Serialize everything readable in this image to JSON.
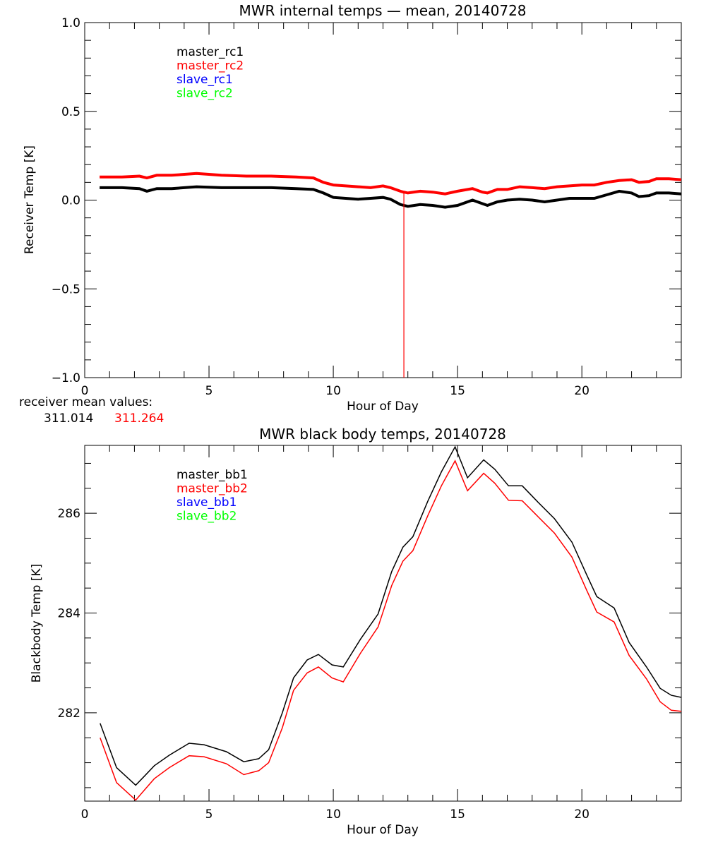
{
  "chart_data": [
    {
      "type": "line",
      "title": "MWR internal temps — mean, 20140728",
      "xlabel": "Hour of Day",
      "ylabel": "Receiver Temp [K]",
      "xlim": [
        0,
        24
      ],
      "ylim": [
        -1.0,
        1.0
      ],
      "xticks": [
        0,
        5,
        10,
        15,
        20
      ],
      "xtick_labels": [
        "0",
        "5",
        "10",
        "15",
        "20"
      ],
      "yticks": [
        -1.0,
        -0.5,
        0.0,
        0.5,
        1.0
      ],
      "ytick_labels": [
        "−1.0",
        "−0.5",
        "0.0",
        "0.5",
        "1.0"
      ],
      "grid": false,
      "legend_placement": "top-left",
      "legend": [
        {
          "name": "master_rc1",
          "color": "#000000"
        },
        {
          "name": "master_rc2",
          "color": "#ff0000"
        },
        {
          "name": "slave_rc1",
          "color": "#0000ff"
        },
        {
          "name": "slave_rc2",
          "color": "#00ff00"
        }
      ],
      "series": [
        {
          "name": "master_rc1",
          "color": "#000000",
          "x": [
            0.6,
            1.5,
            2.2,
            2.5,
            2.9,
            3.5,
            4.5,
            5.5,
            6.5,
            7.5,
            8.5,
            9.2,
            9.6,
            10.0,
            10.5,
            11.0,
            11.5,
            12.0,
            12.3,
            12.7,
            13.0,
            13.5,
            14.0,
            14.5,
            15.0,
            15.6,
            16.0,
            16.2,
            16.6,
            17.0,
            17.5,
            18.0,
            18.5,
            19.0,
            19.5,
            20.0,
            20.5,
            21.0,
            21.5,
            22.0,
            22.3,
            22.7,
            23.0,
            23.5,
            24.0
          ],
          "y": [
            0.07,
            0.07,
            0.065,
            0.05,
            0.065,
            0.065,
            0.075,
            0.07,
            0.07,
            0.07,
            0.065,
            0.06,
            0.04,
            0.015,
            0.01,
            0.005,
            0.01,
            0.015,
            0.005,
            -0.025,
            -0.035,
            -0.025,
            -0.03,
            -0.04,
            -0.03,
            0.0,
            -0.02,
            -0.03,
            -0.01,
            0.0,
            0.005,
            0.0,
            -0.01,
            0.0,
            0.01,
            0.01,
            0.01,
            0.03,
            0.05,
            0.04,
            0.02,
            0.025,
            0.04,
            0.04,
            0.035
          ]
        },
        {
          "name": "master_rc2",
          "color": "#ff0000",
          "x": [
            0.6,
            1.5,
            2.2,
            2.5,
            2.9,
            3.5,
            4.5,
            5.5,
            6.5,
            7.5,
            8.5,
            9.2,
            9.6,
            10.0,
            10.5,
            11.0,
            11.5,
            12.0,
            12.3,
            12.7,
            12.83,
            12.84,
            12.85,
            13.0,
            13.5,
            14.0,
            14.5,
            15.0,
            15.6,
            16.0,
            16.2,
            16.6,
            17.0,
            17.5,
            18.0,
            18.5,
            19.0,
            19.5,
            20.0,
            20.5,
            21.0,
            21.5,
            22.0,
            22.3,
            22.7,
            23.0,
            23.5,
            24.0
          ],
          "y": [
            0.13,
            0.13,
            0.135,
            0.125,
            0.14,
            0.14,
            0.15,
            0.14,
            0.135,
            0.135,
            0.13,
            0.125,
            0.1,
            0.085,
            0.08,
            0.075,
            0.07,
            0.08,
            0.07,
            0.05,
            0.045,
            -1.05,
            0.045,
            0.04,
            0.05,
            0.045,
            0.035,
            0.05,
            0.065,
            0.045,
            0.04,
            0.06,
            0.06,
            0.075,
            0.07,
            0.065,
            0.075,
            0.08,
            0.085,
            0.085,
            0.1,
            0.11,
            0.115,
            0.1,
            0.105,
            0.12,
            0.12,
            0.115
          ]
        }
      ]
    },
    {
      "type": "line",
      "title": "MWR black body temps, 20140728",
      "xlabel": "Hour of Day",
      "ylabel": "Blackbody Temp [K]",
      "xlim": [
        0,
        24
      ],
      "ylim": [
        280.23,
        287.36
      ],
      "xticks": [
        0,
        5,
        10,
        15,
        20
      ],
      "xtick_labels": [
        "0",
        "5",
        "10",
        "15",
        "20"
      ],
      "yticks": [
        282,
        284,
        286
      ],
      "ytick_labels": [
        "282",
        "284",
        "286"
      ],
      "grid": false,
      "legend_placement": "top-left",
      "legend": [
        {
          "name": "master_bb1",
          "color": "#000000"
        },
        {
          "name": "master_bb2",
          "color": "#ff0000"
        },
        {
          "name": "slave_bb1",
          "color": "#0000ff"
        },
        {
          "name": "slave_bb2",
          "color": "#00ff00"
        }
      ],
      "series": [
        {
          "name": "master_bb1",
          "color": "#000000",
          "x": [
            0.62,
            1.28,
            2.05,
            2.4,
            2.8,
            3.4,
            4.2,
            4.8,
            5.7,
            6.4,
            7.0,
            7.4,
            7.95,
            8.4,
            8.95,
            9.4,
            9.95,
            10.4,
            11.1,
            11.8,
            12.35,
            12.8,
            13.2,
            13.8,
            14.35,
            14.9,
            15.4,
            16.05,
            16.5,
            17.05,
            17.6,
            18.2,
            18.9,
            19.6,
            20.2,
            20.6,
            21.3,
            21.9,
            22.6,
            23.15,
            23.6,
            24.0
          ],
          "y": [
            281.79,
            280.9,
            280.55,
            280.73,
            280.94,
            281.15,
            281.39,
            281.36,
            281.22,
            281.02,
            281.08,
            281.26,
            282.0,
            282.7,
            283.06,
            283.17,
            282.96,
            282.92,
            283.48,
            283.98,
            284.83,
            285.32,
            285.53,
            286.24,
            286.83,
            287.33,
            286.71,
            287.07,
            286.88,
            286.55,
            286.55,
            286.24,
            285.89,
            285.42,
            284.76,
            284.33,
            284.1,
            283.41,
            282.92,
            282.49,
            282.35,
            282.31
          ]
        },
        {
          "name": "master_bb2",
          "color": "#ff0000",
          "x": [
            0.62,
            1.28,
            2.05,
            2.4,
            2.8,
            3.4,
            4.2,
            4.8,
            5.7,
            6.4,
            7.0,
            7.4,
            7.95,
            8.4,
            8.95,
            9.4,
            9.95,
            10.4,
            11.1,
            11.8,
            12.35,
            12.8,
            13.2,
            13.8,
            14.35,
            14.9,
            15.4,
            16.05,
            16.5,
            17.05,
            17.6,
            18.2,
            18.9,
            19.6,
            20.2,
            20.6,
            21.3,
            21.9,
            22.6,
            23.15,
            23.6,
            24.0
          ],
          "y": [
            281.5,
            280.6,
            280.25,
            280.45,
            280.68,
            280.9,
            281.14,
            281.12,
            280.98,
            280.76,
            280.84,
            281.0,
            281.7,
            282.45,
            282.8,
            282.92,
            282.7,
            282.62,
            283.2,
            283.72,
            284.55,
            285.04,
            285.25,
            285.95,
            286.55,
            287.05,
            286.45,
            286.8,
            286.6,
            286.26,
            286.25,
            285.95,
            285.6,
            285.12,
            284.45,
            284.02,
            283.82,
            283.15,
            282.68,
            282.22,
            282.05,
            282.03
          ]
        }
      ]
    }
  ],
  "receiver_mean": {
    "label": "receiver mean values:",
    "values": [
      {
        "text": "311.014",
        "color": "#000000"
      },
      {
        "text": "311.264",
        "color": "#ff0000"
      }
    ]
  }
}
